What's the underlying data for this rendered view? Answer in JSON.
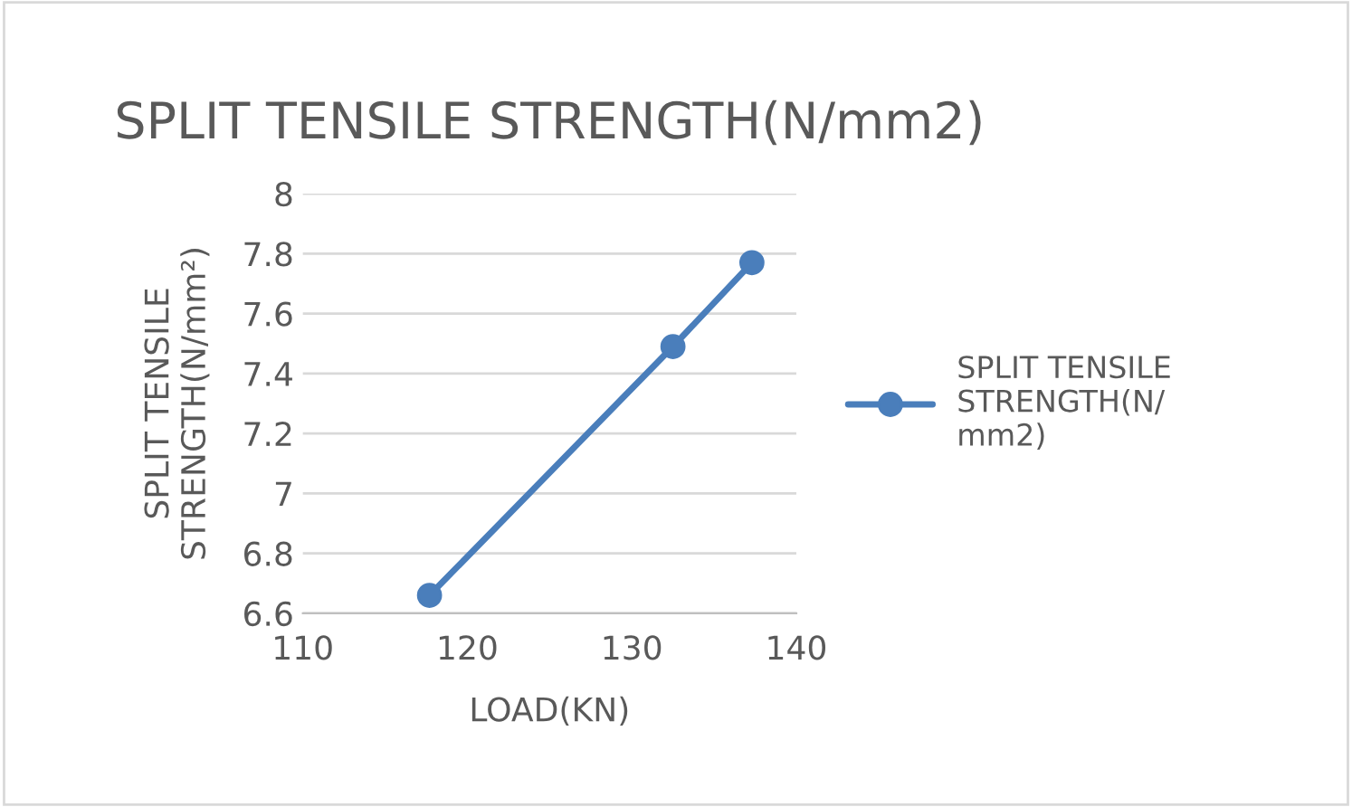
{
  "chart_data": {
    "type": "line",
    "title": "SPLIT TENSILE STRENGTH(N/mm2)",
    "xlabel": "LOAD(KN)",
    "ylabel": "SPLIT TENSILE\nSTRENGTH(N/mm²)",
    "x": [
      117.7,
      132.5,
      137.3
    ],
    "series": [
      {
        "name": "SPLIT TENSILE\nSTRENGTH(N/\nmm2)",
        "color": "#4a7ebb",
        "values": [
          6.66,
          7.49,
          7.77
        ]
      }
    ],
    "xlim": [
      110,
      140
    ],
    "xticks": [
      110,
      120,
      130,
      140
    ],
    "ylim": [
      6.6,
      8
    ],
    "yticks": [
      6.6,
      6.8,
      7,
      7.2,
      7.4,
      7.6,
      7.8,
      8
    ],
    "grid": "y",
    "legend": "right",
    "marker": "circle",
    "line_style": "solid"
  }
}
